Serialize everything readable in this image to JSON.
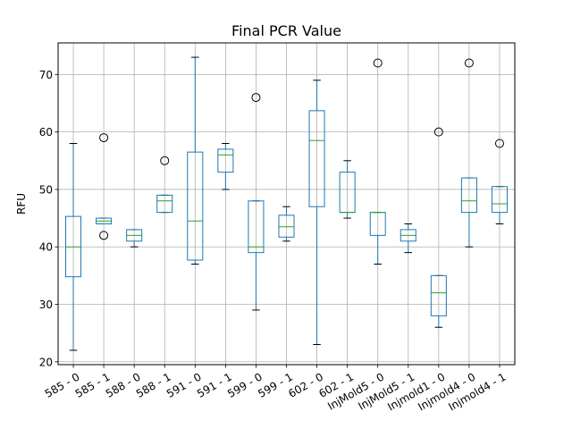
{
  "chart_data": {
    "type": "boxplot",
    "title": "Final PCR Value",
    "xlabel": "",
    "ylabel": "RFU",
    "ylim": [
      19.5,
      75.5
    ],
    "yticks": [
      20,
      30,
      40,
      50,
      60,
      70
    ],
    "grid": true,
    "colors": {
      "box": "#1f77b4",
      "median": "#2ca02c",
      "whisker": "#000000",
      "grid": "#b0b0b0"
    },
    "categories": [
      "585 - 0",
      "585 - 1",
      "588 - 0",
      "588 - 1",
      "591 - 0",
      "591 - 1",
      "599 - 0",
      "599 - 1",
      "602 - 0",
      "602 - 1",
      "InjMold5 - 0",
      "InjMold5 - 1",
      "Injmold1 - 0",
      "Injmold4 - 0",
      "Injmold4 - 1"
    ],
    "boxes": [
      {
        "category": "585 - 0",
        "whislo": 22,
        "q1": 34.8,
        "med": 40,
        "q3": 45.3,
        "whishi": 58,
        "fliers": []
      },
      {
        "category": "585 - 1",
        "whislo": 44,
        "q1": 44,
        "med": 44.5,
        "q3": 45,
        "whishi": 45,
        "fliers": [
          42,
          59
        ]
      },
      {
        "category": "588 - 0",
        "whislo": 40,
        "q1": 41,
        "med": 42,
        "q3": 43,
        "whishi": 43,
        "fliers": []
      },
      {
        "category": "588 - 1",
        "whislo": 46,
        "q1": 46,
        "med": 48,
        "q3": 49,
        "whishi": 49,
        "fliers": [
          55
        ]
      },
      {
        "category": "591 - 0",
        "whislo": 37,
        "q1": 37.7,
        "med": 44.5,
        "q3": 56.5,
        "whishi": 73,
        "fliers": []
      },
      {
        "category": "591 - 1",
        "whislo": 50,
        "q1": 53,
        "med": 56,
        "q3": 57,
        "whishi": 58,
        "fliers": []
      },
      {
        "category": "599 - 0",
        "whislo": 29,
        "q1": 39,
        "med": 40,
        "q3": 48,
        "whishi": 48,
        "fliers": [
          66
        ]
      },
      {
        "category": "599 - 1",
        "whislo": 41,
        "q1": 41.7,
        "med": 43.5,
        "q3": 45.5,
        "whishi": 47,
        "fliers": []
      },
      {
        "category": "602 - 0",
        "whislo": 23,
        "q1": 47,
        "med": 58.5,
        "q3": 63.7,
        "whishi": 69,
        "fliers": []
      },
      {
        "category": "602 - 1",
        "whislo": 45,
        "q1": 46,
        "med": 46,
        "q3": 53,
        "whishi": 55,
        "fliers": []
      },
      {
        "category": "InjMold5 - 0",
        "whislo": 37,
        "q1": 42,
        "med": 46,
        "q3": 46,
        "whishi": 46,
        "fliers": [
          72
        ]
      },
      {
        "category": "InjMold5 - 1",
        "whislo": 39,
        "q1": 41,
        "med": 42,
        "q3": 43,
        "whishi": 44,
        "fliers": []
      },
      {
        "category": "Injmold1 - 0",
        "whislo": 26,
        "q1": 28,
        "med": 32,
        "q3": 35,
        "whishi": 35,
        "fliers": [
          60
        ]
      },
      {
        "category": "Injmold4 - 0",
        "whislo": 40,
        "q1": 46,
        "med": 48,
        "q3": 52,
        "whishi": 52,
        "fliers": [
          72
        ]
      },
      {
        "category": "Injmold4 - 1",
        "whislo": 44,
        "q1": 46,
        "med": 47.5,
        "q3": 50.5,
        "whishi": 50.5,
        "fliers": [
          58
        ]
      }
    ]
  }
}
